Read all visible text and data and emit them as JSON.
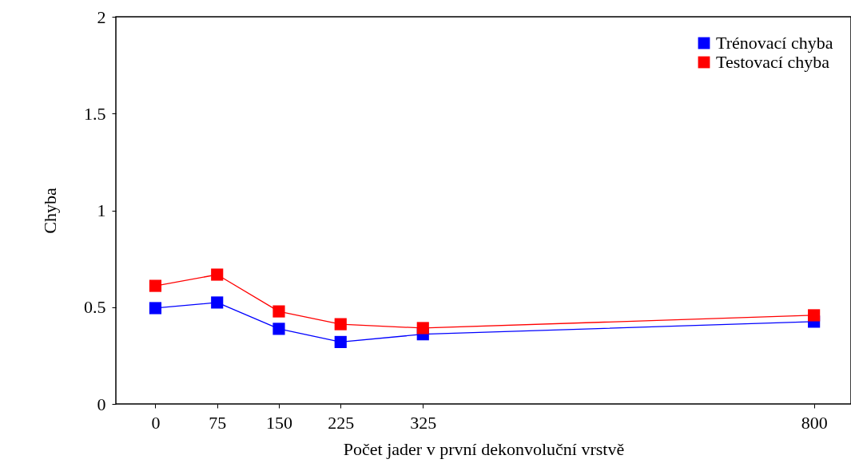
{
  "chart_data": {
    "type": "line",
    "xlabel": "Počet jader v první dekonvoluční vrstvě",
    "ylabel": "Chyba",
    "x": [
      0,
      75,
      150,
      225,
      325,
      800
    ],
    "series": [
      {
        "name": "Trénovací chyba",
        "color": "#0000ff",
        "values": [
          0.495,
          0.524,
          0.388,
          0.32,
          0.36,
          0.425
        ]
      },
      {
        "name": "Testovací chyba",
        "color": "#ff0000",
        "values": [
          0.61,
          0.668,
          0.478,
          0.412,
          0.392,
          0.458
        ]
      }
    ],
    "xlim": [
      -48,
      845
    ],
    "xticks": [
      0,
      75,
      150,
      225,
      325,
      800
    ],
    "ylim": [
      0,
      2
    ],
    "yticks": [
      0,
      0.5,
      1,
      1.5,
      2
    ],
    "grid": false,
    "legend": "top right",
    "marker": "square",
    "line_style": "solid"
  }
}
